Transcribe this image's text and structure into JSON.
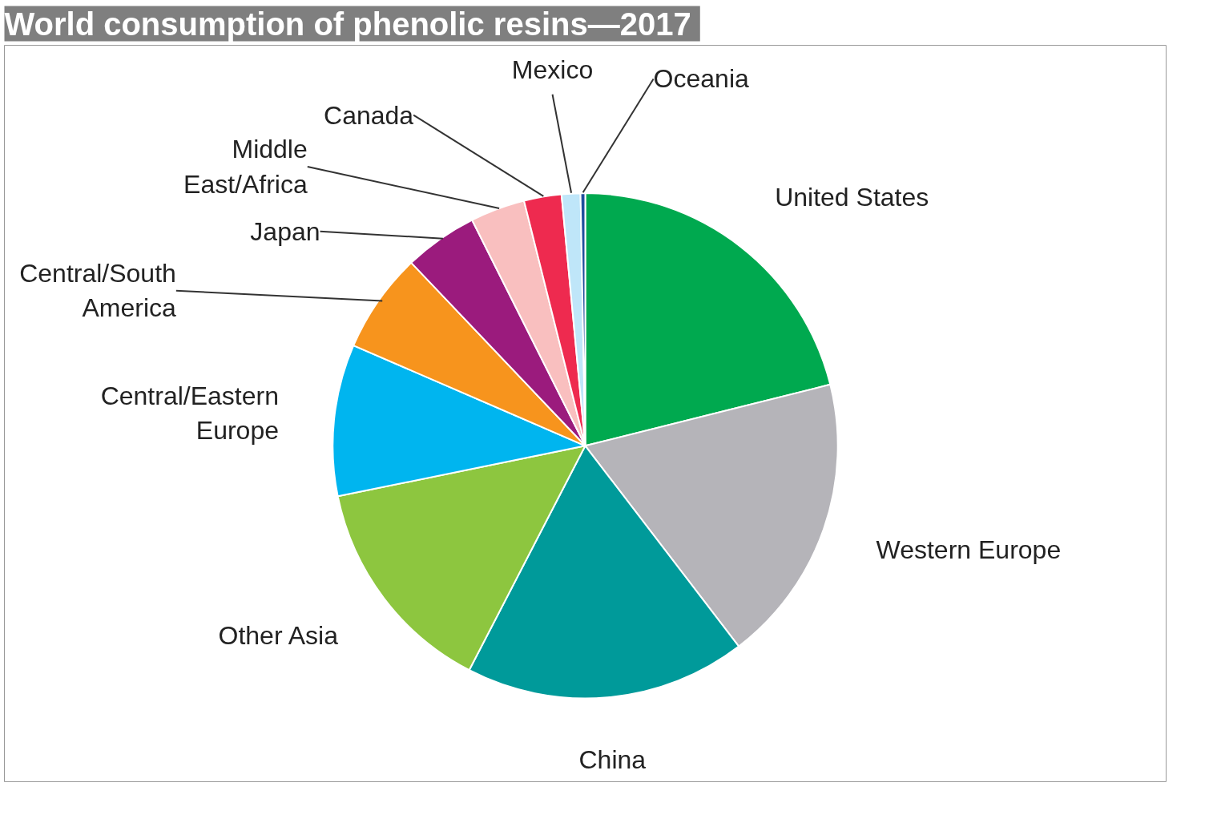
{
  "chart_data": {
    "type": "pie",
    "title": "World consumption  of phenolic resins—2017",
    "categories": [
      "United States",
      "Western Europe",
      "China",
      "Other Asia",
      "Central/Eastern\nEurope",
      "Central/South\nAmerica",
      "Japan",
      "Middle\nEast/Africa",
      "Canada",
      "Mexico",
      "Oceania"
    ],
    "values": [
      21.1,
      18.5,
      18.0,
      14.2,
      9.7,
      6.4,
      4.7,
      3.5,
      2.4,
      1.2,
      0.3
    ],
    "colors": [
      "#00a94f",
      "#b5b4b9",
      "#009a9a",
      "#8dc63f",
      "#00b5ef",
      "#f7941d",
      "#9b1b7d",
      "#f9bfbf",
      "#ee2a4f",
      "#bfe6f9",
      "#1f4e9c"
    ]
  }
}
